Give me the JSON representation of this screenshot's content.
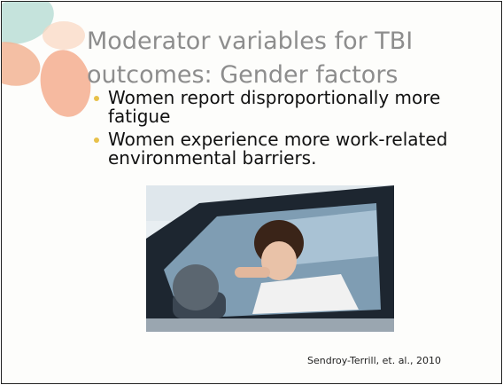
{
  "title": "Moderator variables for TBI outcomes: Gender factors",
  "bullets": [
    "Women report disproportionally more fatigue",
    "Women experience more work-related environmental barriers."
  ],
  "citation": "Sendroy-Terrill, et. al., 2010"
}
